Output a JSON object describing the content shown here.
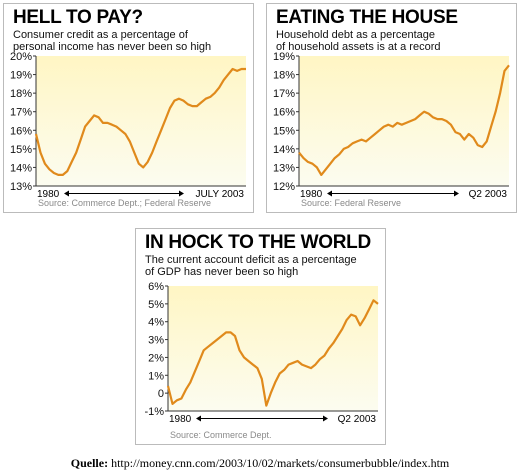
{
  "credit": {
    "label": "Quelle:",
    "url": "http://money.cnn.com/2003/10/02/markets/consumerbubble/index.htm"
  },
  "style": {
    "line_color": "#e08a1c",
    "plot_bg_top": "#fff6c4",
    "plot_bg_bottom": "#fcfcf0",
    "axis_color": "#333333",
    "source_color": "#8a8a8a"
  },
  "chart_data": [
    {
      "type": "line",
      "title": "HELL TO PAY?",
      "subtitle": [
        "Consumer credit as a percentage of",
        "personal income has never been so high"
      ],
      "yticks": [
        "20%",
        "19%",
        "18%",
        "17%",
        "16%",
        "15%",
        "14%",
        "13%"
      ],
      "ylim": [
        13,
        20
      ],
      "xlim": [
        1980,
        2003.5
      ],
      "x_start_label": "1980",
      "x_end_label": "JULY 2003",
      "source": "Source: Commerce Dept.; Federal Reserve",
      "series": [
        {
          "x": [
            1980,
            1980.5,
            1981,
            1981.5,
            1982,
            1982.5,
            1983,
            1983.5,
            1984,
            1984.5,
            1985,
            1985.5,
            1986,
            1986.5,
            1987,
            1987.5,
            1988,
            1988.5,
            1989,
            1989.5,
            1990,
            1990.5,
            1991,
            1991.5,
            1992,
            1992.5,
            1993,
            1993.5,
            1994,
            1994.5,
            1995,
            1995.5,
            1996,
            1996.5,
            1997,
            1997.5,
            1998,
            1998.5,
            1999,
            1999.5,
            2000,
            2000.5,
            2001,
            2001.5,
            2002,
            2002.5,
            2003,
            2003.5
          ],
          "y": [
            15.8,
            14.8,
            14.2,
            13.9,
            13.7,
            13.6,
            13.6,
            13.8,
            14.3,
            14.8,
            15.5,
            16.2,
            16.5,
            16.8,
            16.7,
            16.4,
            16.4,
            16.3,
            16.2,
            16.0,
            15.8,
            15.4,
            14.8,
            14.2,
            14.0,
            14.3,
            14.8,
            15.4,
            16.0,
            16.6,
            17.2,
            17.6,
            17.7,
            17.6,
            17.4,
            17.3,
            17.3,
            17.5,
            17.7,
            17.8,
            18.0,
            18.3,
            18.7,
            19.0,
            19.3,
            19.2,
            19.3,
            19.3
          ]
        }
      ]
    },
    {
      "type": "line",
      "title": "EATING THE HOUSE",
      "subtitle": [
        "Household debt as a percentage",
        "of household assets is at a record"
      ],
      "yticks": [
        "19%",
        "18%",
        "17%",
        "16%",
        "15%",
        "14%",
        "13%",
        "12%"
      ],
      "ylim": [
        12,
        19
      ],
      "xlim": [
        1980,
        2003.5
      ],
      "x_start_label": "1980",
      "x_end_label": "Q2 2003",
      "source": "Source: Federal Reserve",
      "series": [
        {
          "x": [
            1980,
            1980.5,
            1981,
            1981.5,
            1982,
            1982.5,
            1983,
            1983.5,
            1984,
            1984.5,
            1985,
            1985.5,
            1986,
            1986.5,
            1987,
            1987.5,
            1988,
            1988.5,
            1989,
            1989.5,
            1990,
            1990.5,
            1991,
            1991.5,
            1992,
            1992.5,
            1993,
            1993.5,
            1994,
            1994.5,
            1995,
            1995.5,
            1996,
            1996.5,
            1997,
            1997.5,
            1998,
            1998.5,
            1999,
            1999.5,
            2000,
            2000.5,
            2001,
            2001.5,
            2002,
            2002.5,
            2003,
            2003.5
          ],
          "y": [
            13.8,
            13.5,
            13.3,
            13.2,
            13.0,
            12.6,
            12.9,
            13.2,
            13.5,
            13.7,
            14.0,
            14.1,
            14.3,
            14.4,
            14.5,
            14.4,
            14.6,
            14.8,
            15.0,
            15.2,
            15.3,
            15.2,
            15.4,
            15.3,
            15.4,
            15.5,
            15.6,
            15.8,
            16.0,
            15.9,
            15.7,
            15.6,
            15.6,
            15.5,
            15.3,
            14.9,
            14.8,
            14.5,
            14.8,
            14.6,
            14.2,
            14.1,
            14.4,
            15.2,
            16.0,
            17.0,
            18.2,
            18.5
          ]
        }
      ]
    },
    {
      "type": "line",
      "title": "IN HOCK TO THE WORLD",
      "subtitle": [
        "The current account deficit as a percentage",
        "of GDP has never been so high"
      ],
      "yticks": [
        "6%",
        "5%",
        "4%",
        "3%",
        "2%",
        "1%",
        "0",
        "-1%"
      ],
      "ylim": [
        -1,
        6
      ],
      "xlim": [
        1980,
        2003.5
      ],
      "x_start_label": "1980",
      "x_end_label": "Q2 2003",
      "source": "Source: Commerce Dept.",
      "series": [
        {
          "x": [
            1980,
            1980.5,
            1981,
            1981.5,
            1982,
            1982.5,
            1983,
            1983.5,
            1984,
            1984.5,
            1985,
            1985.5,
            1986,
            1986.5,
            1987,
            1987.5,
            1988,
            1988.5,
            1989,
            1989.5,
            1990,
            1990.5,
            1991,
            1991.5,
            1992,
            1992.5,
            1993,
            1993.5,
            1994,
            1994.5,
            1995,
            1995.5,
            1996,
            1996.5,
            1997,
            1997.5,
            1998,
            1998.5,
            1999,
            1999.5,
            2000,
            2000.5,
            2001,
            2001.5,
            2002,
            2002.5,
            2003,
            2003.5
          ],
          "y": [
            0.4,
            -0.6,
            -0.4,
            -0.3,
            0.2,
            0.6,
            1.2,
            1.8,
            2.4,
            2.6,
            2.8,
            3.0,
            3.2,
            3.4,
            3.4,
            3.2,
            2.4,
            2.0,
            1.8,
            1.6,
            1.4,
            0.8,
            -0.7,
            0.0,
            0.6,
            1.1,
            1.3,
            1.6,
            1.7,
            1.8,
            1.6,
            1.5,
            1.4,
            1.6,
            1.9,
            2.1,
            2.5,
            2.8,
            3.2,
            3.6,
            4.1,
            4.4,
            4.3,
            3.8,
            4.2,
            4.7,
            5.2,
            5.0
          ]
        }
      ]
    }
  ]
}
